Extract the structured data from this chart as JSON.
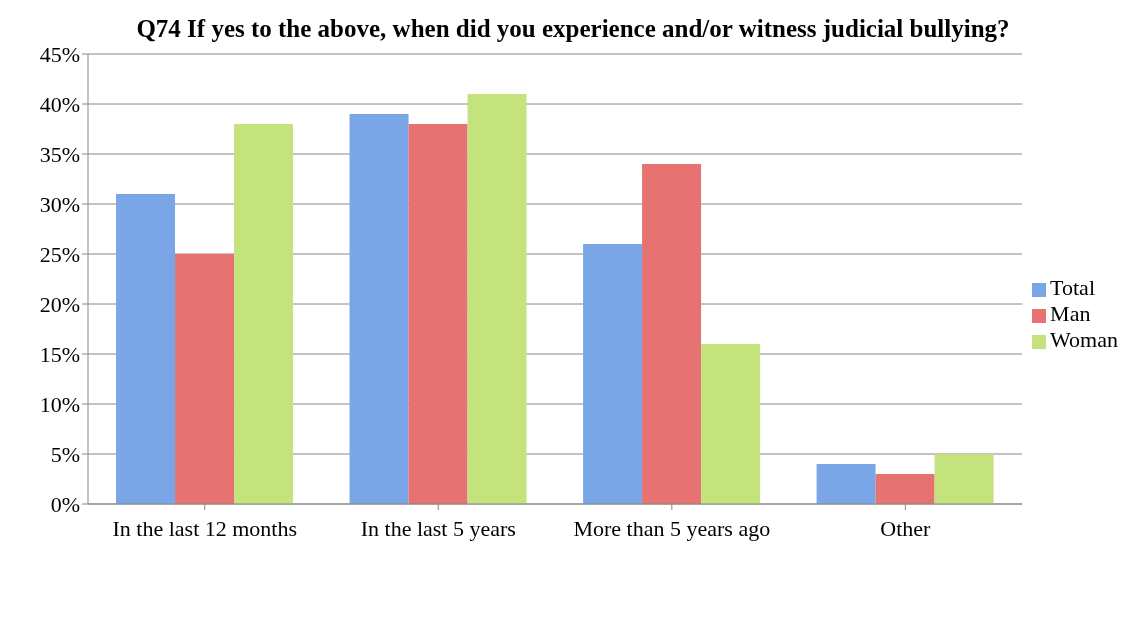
{
  "chart_data": {
    "type": "bar",
    "title": "Q74 If yes to the above, when did you experience and/or witness judicial bullying?",
    "categories": [
      "In the last 12 months",
      "In the last 5 years",
      "More than 5 years ago",
      "Other"
    ],
    "series": [
      {
        "name": "Total",
        "color": "#7aa6e8",
        "values": [
          31,
          39,
          26,
          4
        ]
      },
      {
        "name": "Man",
        "color": "#e67272",
        "values": [
          25,
          38,
          34,
          3
        ]
      },
      {
        "name": "Woman",
        "color": "#c4e37c",
        "values": [
          38,
          41,
          16,
          5
        ]
      }
    ],
    "ylim": [
      0,
      45
    ],
    "yticks": [
      {
        "value": 0,
        "label": "0%"
      },
      {
        "value": 5,
        "label": "5%"
      },
      {
        "value": 10,
        "label": "10%"
      },
      {
        "value": 15,
        "label": "15%"
      },
      {
        "value": 20,
        "label": "20%"
      },
      {
        "value": 25,
        "label": "25%"
      },
      {
        "value": 30,
        "label": "30%"
      },
      {
        "value": 35,
        "label": "35%"
      },
      {
        "value": 40,
        "label": "40%"
      },
      {
        "value": 45,
        "label": "45%"
      }
    ],
    "grid": "y",
    "legend": "right"
  }
}
